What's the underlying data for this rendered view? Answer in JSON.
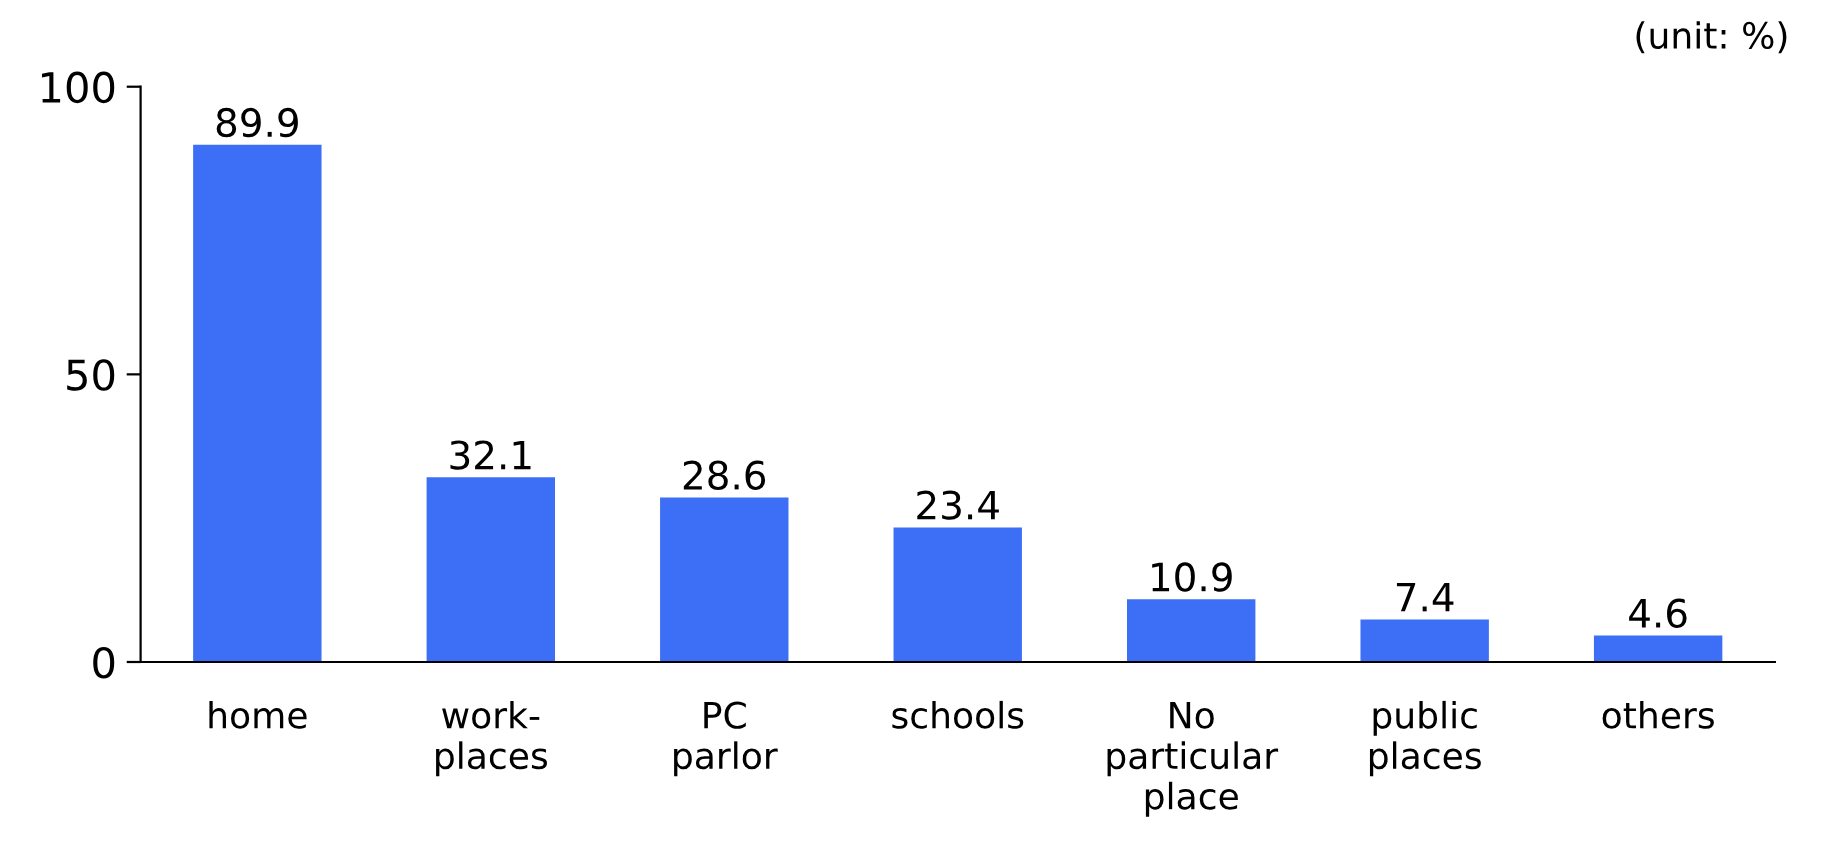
{
  "chart_data": {
    "type": "bar",
    "categories": [
      "home",
      "work-\nplaces",
      "PC\nparlor",
      "schools",
      "No\nparticular\nplace",
      "public\nplaces",
      "others"
    ],
    "values": [
      89.9,
      32.1,
      28.6,
      23.4,
      10.9,
      7.4,
      4.6
    ],
    "color": "#3c6ff5",
    "ylim": [
      0,
      100
    ],
    "yticks": [
      0,
      50,
      100
    ],
    "data_labels": true,
    "grid": false,
    "legend": false,
    "annotations": [
      "(unit: %)"
    ]
  }
}
